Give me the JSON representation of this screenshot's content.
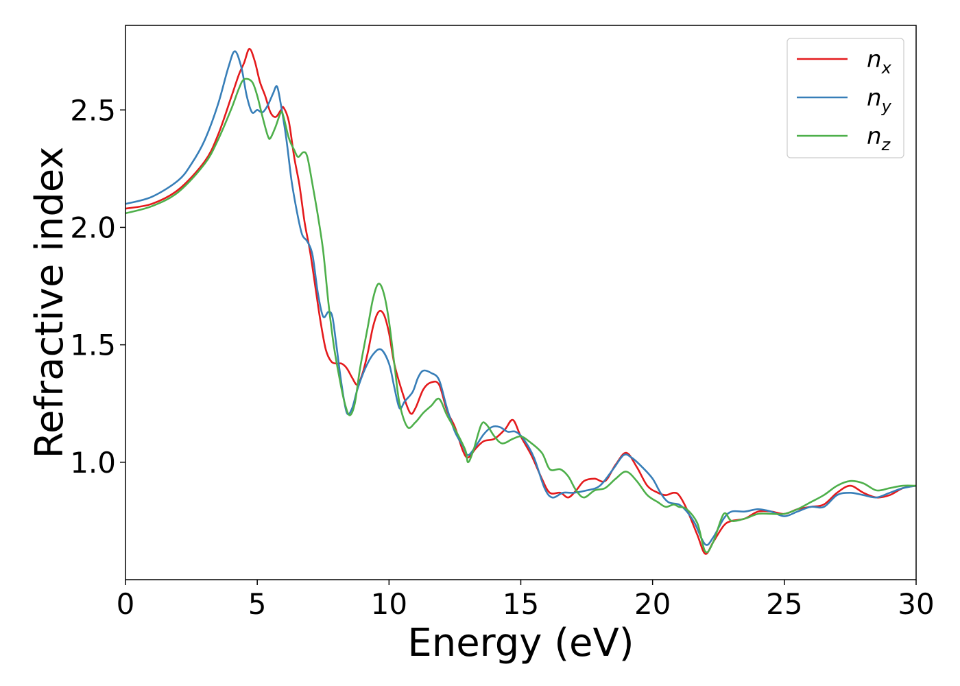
{
  "chart_data": {
    "type": "line",
    "title": "",
    "xlabel": "Energy (eV)",
    "ylabel": "Refractive index",
    "xlim": [
      0,
      30
    ],
    "ylim": [
      0.5,
      2.86
    ],
    "xticks": [
      0,
      5,
      10,
      15,
      20,
      25,
      30
    ],
    "xtick_labels": [
      "0",
      "5",
      "10",
      "15",
      "20",
      "25",
      "30"
    ],
    "yticks": [
      1.0,
      1.5,
      2.0,
      2.5
    ],
    "ytick_labels": [
      "1.0",
      "1.5",
      "2.0",
      "2.5"
    ],
    "grid": false,
    "legend_position": "top-right",
    "series": [
      {
        "name": "n_x",
        "label_base": "n",
        "label_sub": "x",
        "color": "#e41a1c",
        "points": [
          [
            0,
            2.08
          ],
          [
            1,
            2.1
          ],
          [
            2,
            2.16
          ],
          [
            3,
            2.28
          ],
          [
            3.5,
            2.39
          ],
          [
            4,
            2.55
          ],
          [
            4.3,
            2.65
          ],
          [
            4.5,
            2.7
          ],
          [
            4.7,
            2.76
          ],
          [
            4.9,
            2.71
          ],
          [
            5.1,
            2.62
          ],
          [
            5.3,
            2.56
          ],
          [
            5.5,
            2.49
          ],
          [
            5.7,
            2.47
          ],
          [
            5.9,
            2.5
          ],
          [
            6.0,
            2.51
          ],
          [
            6.2,
            2.45
          ],
          [
            6.4,
            2.3
          ],
          [
            6.6,
            2.18
          ],
          [
            6.8,
            2.02
          ],
          [
            7.0,
            1.9
          ],
          [
            7.2,
            1.75
          ],
          [
            7.4,
            1.6
          ],
          [
            7.6,
            1.48
          ],
          [
            7.8,
            1.43
          ],
          [
            8.0,
            1.42
          ],
          [
            8.2,
            1.42
          ],
          [
            8.4,
            1.4
          ],
          [
            8.6,
            1.36
          ],
          [
            8.8,
            1.33
          ],
          [
            9.0,
            1.38
          ],
          [
            9.2,
            1.47
          ],
          [
            9.4,
            1.58
          ],
          [
            9.6,
            1.64
          ],
          [
            9.8,
            1.63
          ],
          [
            10.0,
            1.55
          ],
          [
            10.2,
            1.42
          ],
          [
            10.5,
            1.3
          ],
          [
            10.8,
            1.21
          ],
          [
            11.0,
            1.23
          ],
          [
            11.3,
            1.31
          ],
          [
            11.6,
            1.34
          ],
          [
            11.9,
            1.33
          ],
          [
            12.2,
            1.22
          ],
          [
            12.5,
            1.15
          ],
          [
            12.8,
            1.05
          ],
          [
            13.0,
            1.02
          ],
          [
            13.3,
            1.06
          ],
          [
            13.6,
            1.09
          ],
          [
            14.0,
            1.1
          ],
          [
            14.4,
            1.14
          ],
          [
            14.7,
            1.18
          ],
          [
            15.0,
            1.11
          ],
          [
            15.4,
            1.03
          ],
          [
            15.8,
            0.93
          ],
          [
            16.1,
            0.87
          ],
          [
            16.5,
            0.87
          ],
          [
            16.8,
            0.85
          ],
          [
            17.1,
            0.88
          ],
          [
            17.4,
            0.92
          ],
          [
            17.8,
            0.93
          ],
          [
            18.2,
            0.92
          ],
          [
            18.6,
            0.99
          ],
          [
            19.0,
            1.04
          ],
          [
            19.4,
            0.98
          ],
          [
            19.8,
            0.9
          ],
          [
            20.2,
            0.87
          ],
          [
            20.5,
            0.86
          ],
          [
            20.8,
            0.87
          ],
          [
            21.0,
            0.86
          ],
          [
            21.3,
            0.8
          ],
          [
            21.7,
            0.69
          ],
          [
            22.0,
            0.61
          ],
          [
            22.3,
            0.66
          ],
          [
            22.7,
            0.73
          ],
          [
            23.0,
            0.75
          ],
          [
            23.5,
            0.76
          ],
          [
            24.0,
            0.79
          ],
          [
            24.5,
            0.79
          ],
          [
            25.0,
            0.78
          ],
          [
            25.5,
            0.8
          ],
          [
            26.0,
            0.81
          ],
          [
            26.5,
            0.82
          ],
          [
            27.0,
            0.87
          ],
          [
            27.5,
            0.9
          ],
          [
            28.0,
            0.87
          ],
          [
            28.5,
            0.85
          ],
          [
            29.0,
            0.86
          ],
          [
            29.5,
            0.89
          ],
          [
            30.0,
            0.9
          ]
        ]
      },
      {
        "name": "n_y",
        "label_base": "n",
        "label_sub": "y",
        "color": "#377eb8",
        "points": [
          [
            0,
            2.1
          ],
          [
            1,
            2.13
          ],
          [
            2,
            2.2
          ],
          [
            2.5,
            2.27
          ],
          [
            3,
            2.37
          ],
          [
            3.5,
            2.52
          ],
          [
            3.9,
            2.68
          ],
          [
            4.15,
            2.75
          ],
          [
            4.4,
            2.68
          ],
          [
            4.6,
            2.56
          ],
          [
            4.8,
            2.49
          ],
          [
            5.0,
            2.5
          ],
          [
            5.2,
            2.49
          ],
          [
            5.4,
            2.52
          ],
          [
            5.6,
            2.57
          ],
          [
            5.75,
            2.6
          ],
          [
            5.9,
            2.52
          ],
          [
            6.1,
            2.38
          ],
          [
            6.3,
            2.2
          ],
          [
            6.5,
            2.07
          ],
          [
            6.7,
            1.97
          ],
          [
            6.9,
            1.94
          ],
          [
            7.1,
            1.88
          ],
          [
            7.3,
            1.72
          ],
          [
            7.5,
            1.62
          ],
          [
            7.7,
            1.64
          ],
          [
            7.85,
            1.62
          ],
          [
            8.0,
            1.5
          ],
          [
            8.2,
            1.33
          ],
          [
            8.4,
            1.21
          ],
          [
            8.6,
            1.23
          ],
          [
            8.8,
            1.31
          ],
          [
            9.1,
            1.4
          ],
          [
            9.4,
            1.46
          ],
          [
            9.7,
            1.48
          ],
          [
            10.0,
            1.42
          ],
          [
            10.2,
            1.32
          ],
          [
            10.4,
            1.23
          ],
          [
            10.6,
            1.26
          ],
          [
            10.9,
            1.3
          ],
          [
            11.1,
            1.36
          ],
          [
            11.3,
            1.39
          ],
          [
            11.6,
            1.38
          ],
          [
            11.9,
            1.35
          ],
          [
            12.2,
            1.23
          ],
          [
            12.5,
            1.13
          ],
          [
            12.8,
            1.07
          ],
          [
            13.0,
            1.03
          ],
          [
            13.3,
            1.07
          ],
          [
            13.6,
            1.12
          ],
          [
            13.9,
            1.15
          ],
          [
            14.2,
            1.15
          ],
          [
            14.5,
            1.13
          ],
          [
            14.8,
            1.13
          ],
          [
            15.1,
            1.1
          ],
          [
            15.5,
            1.02
          ],
          [
            15.9,
            0.89
          ],
          [
            16.2,
            0.85
          ],
          [
            16.6,
            0.87
          ],
          [
            17.0,
            0.87
          ],
          [
            17.5,
            0.88
          ],
          [
            18.0,
            0.9
          ],
          [
            18.5,
            0.97
          ],
          [
            18.9,
            1.03
          ],
          [
            19.2,
            1.02
          ],
          [
            19.6,
            0.98
          ],
          [
            20.0,
            0.93
          ],
          [
            20.3,
            0.87
          ],
          [
            20.6,
            0.83
          ],
          [
            21.0,
            0.82
          ],
          [
            21.3,
            0.79
          ],
          [
            21.6,
            0.74
          ],
          [
            22.0,
            0.65
          ],
          [
            22.3,
            0.68
          ],
          [
            22.7,
            0.76
          ],
          [
            23.0,
            0.79
          ],
          [
            23.5,
            0.79
          ],
          [
            24.0,
            0.8
          ],
          [
            24.5,
            0.79
          ],
          [
            25.0,
            0.77
          ],
          [
            25.5,
            0.79
          ],
          [
            26.0,
            0.81
          ],
          [
            26.5,
            0.81
          ],
          [
            27.0,
            0.86
          ],
          [
            27.5,
            0.87
          ],
          [
            28.0,
            0.86
          ],
          [
            28.5,
            0.85
          ],
          [
            29.0,
            0.87
          ],
          [
            29.5,
            0.89
          ],
          [
            30.0,
            0.9
          ]
        ]
      },
      {
        "name": "n_z",
        "label_base": "n",
        "label_sub": "z",
        "color": "#4daf4a",
        "points": [
          [
            0,
            2.06
          ],
          [
            1,
            2.09
          ],
          [
            2,
            2.15
          ],
          [
            3,
            2.27
          ],
          [
            3.5,
            2.37
          ],
          [
            4.0,
            2.5
          ],
          [
            4.3,
            2.59
          ],
          [
            4.5,
            2.63
          ],
          [
            4.8,
            2.62
          ],
          [
            5.0,
            2.56
          ],
          [
            5.2,
            2.47
          ],
          [
            5.4,
            2.39
          ],
          [
            5.5,
            2.38
          ],
          [
            5.7,
            2.43
          ],
          [
            5.9,
            2.49
          ],
          [
            6.0,
            2.47
          ],
          [
            6.2,
            2.38
          ],
          [
            6.4,
            2.33
          ],
          [
            6.55,
            2.3
          ],
          [
            6.75,
            2.32
          ],
          [
            6.9,
            2.3
          ],
          [
            7.1,
            2.18
          ],
          [
            7.3,
            2.05
          ],
          [
            7.5,
            1.9
          ],
          [
            7.7,
            1.68
          ],
          [
            7.9,
            1.5
          ],
          [
            8.1,
            1.37
          ],
          [
            8.3,
            1.26
          ],
          [
            8.5,
            1.2
          ],
          [
            8.7,
            1.25
          ],
          [
            8.9,
            1.4
          ],
          [
            9.2,
            1.58
          ],
          [
            9.4,
            1.7
          ],
          [
            9.6,
            1.76
          ],
          [
            9.8,
            1.72
          ],
          [
            10.0,
            1.6
          ],
          [
            10.2,
            1.42
          ],
          [
            10.4,
            1.25
          ],
          [
            10.7,
            1.15
          ],
          [
            11.0,
            1.17
          ],
          [
            11.3,
            1.21
          ],
          [
            11.6,
            1.24
          ],
          [
            11.9,
            1.27
          ],
          [
            12.2,
            1.2
          ],
          [
            12.6,
            1.12
          ],
          [
            12.9,
            1.05
          ],
          [
            13.0,
            1.0
          ],
          [
            13.2,
            1.05
          ],
          [
            13.5,
            1.16
          ],
          [
            13.7,
            1.16
          ],
          [
            14.0,
            1.11
          ],
          [
            14.3,
            1.08
          ],
          [
            14.7,
            1.1
          ],
          [
            15.0,
            1.11
          ],
          [
            15.3,
            1.09
          ],
          [
            15.8,
            1.04
          ],
          [
            16.1,
            0.97
          ],
          [
            16.5,
            0.97
          ],
          [
            16.8,
            0.94
          ],
          [
            17.1,
            0.88
          ],
          [
            17.4,
            0.85
          ],
          [
            17.8,
            0.88
          ],
          [
            18.2,
            0.89
          ],
          [
            18.6,
            0.93
          ],
          [
            19.0,
            0.96
          ],
          [
            19.4,
            0.92
          ],
          [
            19.8,
            0.86
          ],
          [
            20.2,
            0.83
          ],
          [
            20.5,
            0.81
          ],
          [
            20.8,
            0.82
          ],
          [
            21.0,
            0.81
          ],
          [
            21.3,
            0.8
          ],
          [
            21.7,
            0.74
          ],
          [
            22.0,
            0.62
          ],
          [
            22.3,
            0.66
          ],
          [
            22.7,
            0.78
          ],
          [
            23.0,
            0.75
          ],
          [
            23.5,
            0.76
          ],
          [
            24.0,
            0.78
          ],
          [
            24.5,
            0.78
          ],
          [
            25.0,
            0.78
          ],
          [
            25.5,
            0.8
          ],
          [
            26.0,
            0.83
          ],
          [
            26.5,
            0.86
          ],
          [
            27.0,
            0.9
          ],
          [
            27.5,
            0.92
          ],
          [
            28.0,
            0.91
          ],
          [
            28.5,
            0.88
          ],
          [
            29.0,
            0.89
          ],
          [
            29.5,
            0.9
          ],
          [
            30.0,
            0.9
          ]
        ]
      }
    ]
  }
}
